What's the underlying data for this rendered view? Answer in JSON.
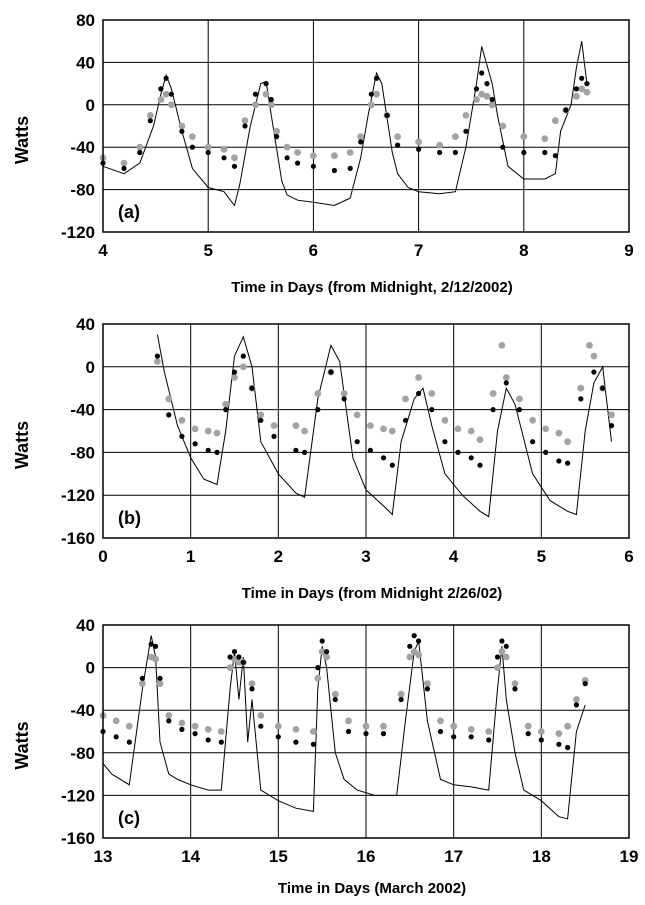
{
  "colors": {
    "model_line": "#000000",
    "measured_black": "#000000",
    "measured_gray": "#a3a3a3",
    "grid": "#000000"
  },
  "chart_data": [
    {
      "type": "scatter",
      "panel_label": "(a)",
      "ylabel": "Watts",
      "xlabel": "Time in Days (from Midnight, 2/12/2002)",
      "xlim": [
        4,
        9
      ],
      "ylim": [
        -120,
        80
      ],
      "xticks": [
        "4",
        "5",
        "6",
        "7",
        "8",
        "9"
      ],
      "yticks": [
        "80",
        "40",
        "0",
        "-40",
        "-80",
        "-120"
      ],
      "grid": true,
      "series": [
        {
          "style": "thin-line",
          "x": [
            4.0,
            4.2,
            4.35,
            4.48,
            4.55,
            4.6,
            4.65,
            4.75,
            4.85,
            5.0,
            5.15,
            5.25,
            5.3,
            5.4,
            5.5,
            5.55,
            5.6,
            5.7,
            5.75,
            5.85,
            6.0,
            6.2,
            6.35,
            6.45,
            6.52,
            6.6,
            6.65,
            6.75,
            6.8,
            6.9,
            7.0,
            7.2,
            7.35,
            7.45,
            7.5,
            7.55,
            7.6,
            7.7,
            7.75,
            7.85,
            8.0,
            8.2,
            8.3,
            8.35,
            8.45,
            8.5,
            8.55,
            8.6
          ],
          "y": [
            -58,
            -65,
            -55,
            -20,
            10,
            28,
            15,
            -25,
            -60,
            -78,
            -82,
            -95,
            -75,
            -20,
            20,
            22,
            -10,
            -72,
            -85,
            -90,
            -92,
            -95,
            -88,
            -50,
            -10,
            30,
            20,
            -45,
            -65,
            -78,
            -82,
            -84,
            -82,
            -40,
            -10,
            20,
            55,
            20,
            -10,
            -58,
            -70,
            -70,
            -65,
            -25,
            0,
            35,
            60,
            20
          ]
        },
        {
          "style": "black-dots",
          "x": [
            4.0,
            4.2,
            4.35,
            4.45,
            4.55,
            4.6,
            4.65,
            4.75,
            4.85,
            5.0,
            5.15,
            5.25,
            5.35,
            5.45,
            5.55,
            5.6,
            5.65,
            5.75,
            5.85,
            6.0,
            6.2,
            6.35,
            6.45,
            6.55,
            6.6,
            6.7,
            6.8,
            7.0,
            7.2,
            7.35,
            7.45,
            7.55,
            7.6,
            7.65,
            7.7,
            7.8,
            8.0,
            8.2,
            8.3,
            8.4,
            8.5,
            8.55,
            8.6
          ],
          "y": [
            -55,
            -60,
            -45,
            -15,
            15,
            25,
            10,
            -25,
            -40,
            -45,
            -50,
            -58,
            -20,
            10,
            20,
            5,
            -30,
            -50,
            -55,
            -58,
            -62,
            -60,
            -35,
            10,
            25,
            -10,
            -38,
            -42,
            -45,
            -45,
            -25,
            15,
            30,
            20,
            5,
            -40,
            -45,
            -45,
            -48,
            -5,
            15,
            25,
            20
          ]
        },
        {
          "style": "gray-dots",
          "x": [
            4.0,
            4.2,
            4.35,
            4.45,
            4.55,
            4.6,
            4.65,
            4.75,
            4.85,
            5.0,
            5.15,
            5.25,
            5.35,
            5.45,
            5.55,
            5.6,
            5.65,
            5.75,
            5.85,
            6.0,
            6.2,
            6.35,
            6.45,
            6.55,
            6.6,
            6.7,
            6.8,
            7.0,
            7.2,
            7.35,
            7.45,
            7.55,
            7.6,
            7.65,
            7.7,
            7.8,
            8.0,
            8.2,
            8.3,
            8.4,
            8.5,
            8.55,
            8.6
          ],
          "y": [
            -50,
            -55,
            -40,
            -10,
            5,
            10,
            0,
            -20,
            -30,
            -40,
            -42,
            -50,
            -15,
            0,
            10,
            0,
            -25,
            -40,
            -45,
            -48,
            -48,
            -45,
            -30,
            0,
            10,
            -10,
            -30,
            -35,
            -38,
            -30,
            -10,
            5,
            10,
            8,
            0,
            -20,
            -30,
            -32,
            -15,
            -5,
            8,
            15,
            12
          ]
        }
      ]
    },
    {
      "type": "scatter",
      "panel_label": "(b)",
      "ylabel": "Watts",
      "xlabel": "Time in Days (from Midnight 2/26/02)",
      "xlim": [
        0,
        6
      ],
      "ylim": [
        -160,
        40
      ],
      "xticks": [
        "0",
        "1",
        "2",
        "3",
        "4",
        "5",
        "6"
      ],
      "yticks": [
        "40",
        "0",
        "-40",
        "-80",
        "-120",
        "-160"
      ],
      "grid": true,
      "series": [
        {
          "style": "thin-line",
          "x": [
            0.62,
            0.7,
            0.85,
            1.0,
            1.15,
            1.3,
            1.4,
            1.5,
            1.6,
            1.7,
            1.8,
            2.0,
            2.2,
            2.3,
            2.45,
            2.6,
            2.7,
            2.85,
            3.0,
            3.2,
            3.3,
            3.4,
            3.55,
            3.65,
            3.75,
            3.9,
            4.1,
            4.3,
            4.4,
            4.5,
            4.6,
            4.7,
            4.9,
            5.1,
            5.3,
            5.4,
            5.5,
            5.6,
            5.7,
            5.8
          ],
          "y": [
            30,
            -5,
            -55,
            -85,
            -105,
            -110,
            -60,
            10,
            28,
            0,
            -70,
            -100,
            -118,
            -122,
            -30,
            20,
            5,
            -85,
            -115,
            -130,
            -138,
            -70,
            -30,
            -20,
            -55,
            -100,
            -120,
            -135,
            -140,
            -60,
            -20,
            -35,
            -100,
            -125,
            -135,
            -138,
            -60,
            -15,
            0,
            -70
          ]
        },
        {
          "style": "black-dots",
          "x": [
            0.62,
            0.75,
            0.9,
            1.05,
            1.2,
            1.3,
            1.4,
            1.5,
            1.6,
            1.7,
            1.8,
            1.95,
            2.2,
            2.3,
            2.45,
            2.6,
            2.75,
            2.9,
            3.05,
            3.2,
            3.3,
            3.45,
            3.6,
            3.75,
            3.9,
            4.05,
            4.2,
            4.3,
            4.45,
            4.6,
            4.75,
            4.9,
            5.05,
            5.2,
            5.3,
            5.45,
            5.6,
            5.7,
            5.8
          ],
          "y": [
            10,
            -45,
            -65,
            -72,
            -78,
            -80,
            -40,
            -5,
            10,
            -20,
            -50,
            -65,
            -78,
            -80,
            -40,
            -5,
            -30,
            -70,
            -78,
            -85,
            -92,
            -50,
            -25,
            -40,
            -70,
            -80,
            -85,
            -92,
            -40,
            -15,
            -40,
            -70,
            -80,
            -88,
            -90,
            -30,
            -5,
            -20,
            -55
          ]
        },
        {
          "style": "gray-dots",
          "x": [
            0.62,
            0.75,
            0.9,
            1.05,
            1.2,
            1.3,
            1.4,
            1.5,
            1.6,
            1.7,
            1.8,
            1.95,
            2.2,
            2.3,
            2.45,
            2.6,
            2.75,
            2.9,
            3.05,
            3.2,
            3.3,
            3.45,
            3.6,
            3.75,
            3.9,
            4.05,
            4.2,
            4.3,
            4.45,
            4.55,
            4.6,
            4.75,
            4.9,
            5.05,
            5.2,
            5.3,
            5.45,
            5.55,
            5.6,
            5.7,
            5.8
          ],
          "y": [
            5,
            -30,
            -50,
            -58,
            -60,
            -62,
            -35,
            -10,
            0,
            -20,
            -45,
            -55,
            -55,
            -60,
            -25,
            -5,
            -25,
            -45,
            -55,
            -58,
            -60,
            -30,
            -10,
            -25,
            -50,
            -58,
            -60,
            -68,
            -25,
            20,
            -10,
            -30,
            -50,
            -58,
            -62,
            -70,
            -20,
            20,
            10,
            -20,
            -45
          ]
        }
      ]
    },
    {
      "type": "scatter",
      "panel_label": "(c)",
      "ylabel": "Watts",
      "xlabel": "Time in Days (March 2002)",
      "xlim": [
        13,
        19
      ],
      "ylim": [
        -160,
        40
      ],
      "xticks": [
        "13",
        "14",
        "15",
        "16",
        "17",
        "18",
        "19"
      ],
      "yticks": [
        "40",
        "0",
        "-40",
        "-80",
        "-120",
        "-160"
      ],
      "grid": true,
      "series": [
        {
          "style": "thin-line",
          "x": [
            13.0,
            13.1,
            13.3,
            13.45,
            13.55,
            13.6,
            13.65,
            13.75,
            13.85,
            14.0,
            14.2,
            14.35,
            14.45,
            14.5,
            14.55,
            14.6,
            14.65,
            14.7,
            14.8,
            15.0,
            15.2,
            15.4,
            15.45,
            15.5,
            15.55,
            15.65,
            15.75,
            15.9,
            16.1,
            16.35,
            16.45,
            16.55,
            16.6,
            16.7,
            16.85,
            17.0,
            17.2,
            17.4,
            17.5,
            17.55,
            17.6,
            17.7,
            17.8,
            18.0,
            18.2,
            18.3,
            18.4,
            18.5
          ],
          "y": [
            -90,
            -100,
            -110,
            -20,
            30,
            10,
            -70,
            -100,
            -105,
            -110,
            -115,
            -115,
            -20,
            15,
            -30,
            10,
            -70,
            -30,
            -115,
            -125,
            -132,
            -135,
            -20,
            20,
            0,
            -80,
            -105,
            -115,
            -120,
            -120,
            -50,
            15,
            25,
            -50,
            -105,
            -110,
            -112,
            -115,
            -20,
            20,
            -30,
            -80,
            -115,
            -125,
            -140,
            -142,
            -60,
            -35
          ]
        },
        {
          "style": "black-dots",
          "x": [
            13.0,
            13.15,
            13.3,
            13.45,
            13.55,
            13.6,
            13.65,
            13.75,
            13.9,
            14.05,
            14.2,
            14.35,
            14.45,
            14.5,
            14.55,
            14.6,
            14.7,
            14.8,
            15.0,
            15.2,
            15.4,
            15.45,
            15.5,
            15.55,
            15.65,
            15.8,
            16.0,
            16.2,
            16.4,
            16.5,
            16.55,
            16.6,
            16.7,
            16.85,
            17.0,
            17.2,
            17.4,
            17.5,
            17.55,
            17.6,
            17.7,
            17.85,
            18.0,
            18.2,
            18.3,
            18.4,
            18.5
          ],
          "y": [
            -60,
            -65,
            -70,
            -10,
            22,
            20,
            -10,
            -50,
            -58,
            -62,
            -68,
            -70,
            10,
            15,
            10,
            5,
            -20,
            -55,
            -65,
            -70,
            -72,
            0,
            25,
            15,
            -30,
            -60,
            -62,
            -62,
            -30,
            20,
            30,
            25,
            -20,
            -60,
            -65,
            -65,
            -68,
            10,
            25,
            20,
            -20,
            -62,
            -68,
            -72,
            -75,
            -35,
            -15
          ]
        },
        {
          "style": "gray-dots",
          "x": [
            13.0,
            13.15,
            13.3,
            13.45,
            13.55,
            13.6,
            13.65,
            13.75,
            13.9,
            14.05,
            14.2,
            14.35,
            14.45,
            14.5,
            14.55,
            14.6,
            14.7,
            14.8,
            15.0,
            15.2,
            15.4,
            15.45,
            15.5,
            15.55,
            15.65,
            15.8,
            16.0,
            16.2,
            16.4,
            16.5,
            16.55,
            16.6,
            16.7,
            16.85,
            17.0,
            17.2,
            17.4,
            17.5,
            17.55,
            17.6,
            17.7,
            17.85,
            18.0,
            18.2,
            18.3,
            18.4,
            18.5
          ],
          "y": [
            -45,
            -50,
            -55,
            -15,
            10,
            8,
            -15,
            -45,
            -52,
            -55,
            -58,
            -60,
            0,
            8,
            5,
            5,
            -15,
            -45,
            -55,
            -58,
            -60,
            -10,
            15,
            10,
            -25,
            -50,
            -55,
            -55,
            -25,
            10,
            15,
            12,
            -15,
            -50,
            -55,
            -58,
            -60,
            0,
            15,
            10,
            -15,
            -55,
            -60,
            -62,
            -55,
            -30,
            -12
          ]
        }
      ]
    }
  ]
}
